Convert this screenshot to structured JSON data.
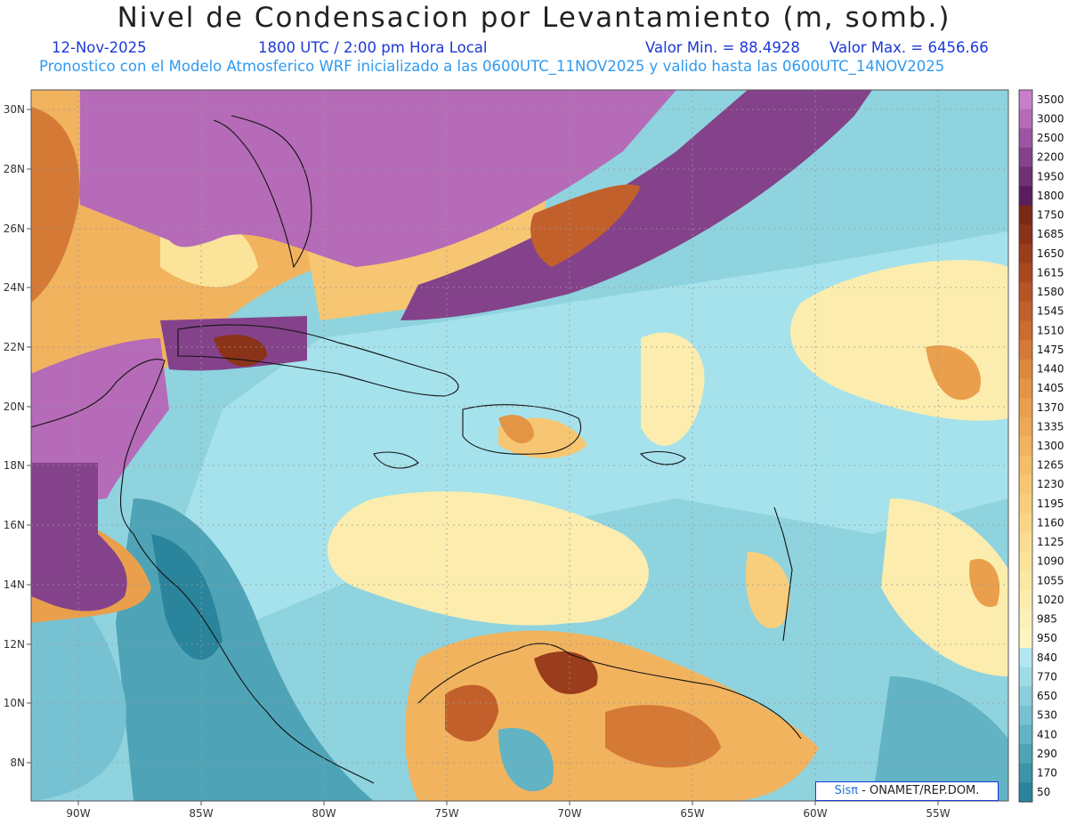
{
  "header": {
    "title": "Nivel de Condensacion por Levantamiento (m, somb.)",
    "date": "12-Nov-2025",
    "time": "1800 UTC / 2:00 pm Hora Local",
    "min_value": "Valor Min. = 88.4928",
    "max_value": "Valor Max. = 6456.66",
    "forecast_info": "Pronostico con el Modelo Atmosferico WRF inicializado a las 0600UTC_11NOV2025 y valido hasta las  0600UTC_14NOV2025"
  },
  "map": {
    "lon_range": [
      -92,
      -52
    ],
    "lat_range": [
      7,
      30.8
    ],
    "lon_ticks": [
      "90W",
      "85W",
      "80W",
      "75W",
      "70W",
      "65W",
      "60W",
      "55W"
    ],
    "lat_ticks": [
      "8N",
      "10N",
      "12N",
      "14N",
      "16N",
      "18N",
      "20N",
      "22N",
      "24N",
      "26N",
      "28N",
      "30N"
    ],
    "gridlines": "dotted"
  },
  "colorbar": {
    "labels": [
      "3500",
      "3000",
      "2500",
      "2200",
      "1950",
      "1800",
      "1750",
      "1685",
      "1650",
      "1615",
      "1580",
      "1545",
      "1510",
      "1475",
      "1440",
      "1405",
      "1370",
      "1335",
      "1300",
      "1265",
      "1230",
      "1195",
      "1160",
      "1125",
      "1090",
      "1055",
      "1020",
      "985",
      "950",
      "840",
      "770",
      "650",
      "530",
      "410",
      "290",
      "170",
      "50"
    ],
    "colors": [
      "#c77fc9",
      "#b56bb8",
      "#9c55a2",
      "#84428a",
      "#6e3175",
      "#5a1e5e",
      "#7a2a14",
      "#8a3318",
      "#9a3d1c",
      "#aa4820",
      "#b85326",
      "#c2602c",
      "#cc6c30",
      "#d57a36",
      "#dd883c",
      "#e39444",
      "#e99f4c",
      "#eea955",
      "#f2b35e",
      "#f5bd68",
      "#f7c672",
      "#f8ce7c",
      "#f9d686",
      "#fadd90",
      "#fbe39a",
      "#fbe8a4",
      "#fcedae",
      "#fcf1b8",
      "#fdf5c2",
      "#b3e6f0",
      "#9fdbe6",
      "#8bcfdc",
      "#77c2d2",
      "#62b3c4",
      "#4ea4b6",
      "#3b94a8",
      "#2a849b"
    ]
  },
  "credit": {
    "sis": "Sisπ",
    "org": "- ONAMET/REP.DOM."
  }
}
